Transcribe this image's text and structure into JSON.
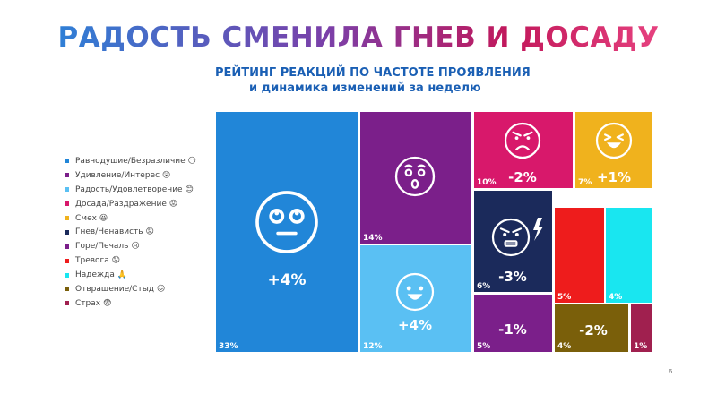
{
  "title": "РАДОСТЬ СМЕНИЛА ГНЕВ И ДОСАДУ",
  "subtitle": {
    "line1": "РЕЙТИНГ РЕАКЦИЙ ПО ЧАСТОТЕ ПРОЯВЛЕНИЯ",
    "line2": "и динамика изменений за неделю"
  },
  "page_number": "6",
  "colors": {
    "title_gradient": [
      "#2f7fd6",
      "#7b3fa8",
      "#c2185b",
      "#e6427f"
    ],
    "subtitle": "#1a5fb4"
  },
  "legend": [
    {
      "label": "Равнодушие/Безразличие 😶",
      "color": "#2186d8"
    },
    {
      "label": "Удивление/Интерес 😲",
      "color": "#7b1f8a"
    },
    {
      "label": "Радость/Удовлетворение 😊",
      "color": "#5ac0f3"
    },
    {
      "label": "Досада/Раздражение 😟",
      "color": "#d8186b"
    },
    {
      "label": "Смех 😆",
      "color": "#f0b21d"
    },
    {
      "label": "Гнев/Ненависть 😡",
      "color": "#1b2a5b"
    },
    {
      "label": "Горе/Печаль 😢",
      "color": "#7b1f8a"
    },
    {
      "label": "Тревога 😟",
      "color": "#ee1c1c"
    },
    {
      "label": "Надежда 🙏",
      "color": "#19e6f0"
    },
    {
      "label": "Отвращение/Стыд 😖",
      "color": "#7a5f0a"
    },
    {
      "label": "Страх 😨",
      "color": "#a0204f"
    }
  ],
  "chart_data": {
    "type": "treemap",
    "title": "РАДОСТЬ СМЕНИЛА ГНЕВ И ДОСАДУ",
    "subtitle": "РЕЙТИНГ РЕАКЦИЙ ПО ЧАСТОТЕ ПРОЯВЛЕНИЯ и динамика изменений за неделю",
    "categories": [
      "Равнодушие/Безразличие",
      "Удивление/Интерес",
      "Радость/Удовлетворение",
      "Досада/Раздражение",
      "Смех",
      "Гнев/Ненависть",
      "Горе/Печаль",
      "Тревога",
      "Надежда",
      "Отвращение/Стыд",
      "Страх"
    ],
    "values": [
      33,
      14,
      12,
      10,
      7,
      6,
      5,
      5,
      4,
      4,
      1
    ],
    "value_labels": [
      "33%",
      "14%",
      "12%",
      "10%",
      "7%",
      "6%",
      "5%",
      "5%",
      "4%",
      "4%",
      "1%"
    ],
    "changes": [
      "+4%",
      "",
      "+4%",
      "-2%",
      "+1%",
      "-3%",
      "-1%",
      "",
      "",
      "-2%",
      ""
    ],
    "colors": [
      "#2186d8",
      "#7b1f8a",
      "#5ac0f3",
      "#d8186b",
      "#f0b21d",
      "#1b2a5b",
      "#7b1f8a",
      "#ee1c1c",
      "#19e6f0",
      "#7a5f0a",
      "#a0204f"
    ],
    "icons": [
      "neutral-face-icon",
      "surprised-face-icon",
      "smiling-face-icon",
      "angry-face-icon",
      "laughing-face-icon",
      "furious-face-icon",
      "",
      "",
      "",
      "",
      ""
    ],
    "unit": "%"
  }
}
